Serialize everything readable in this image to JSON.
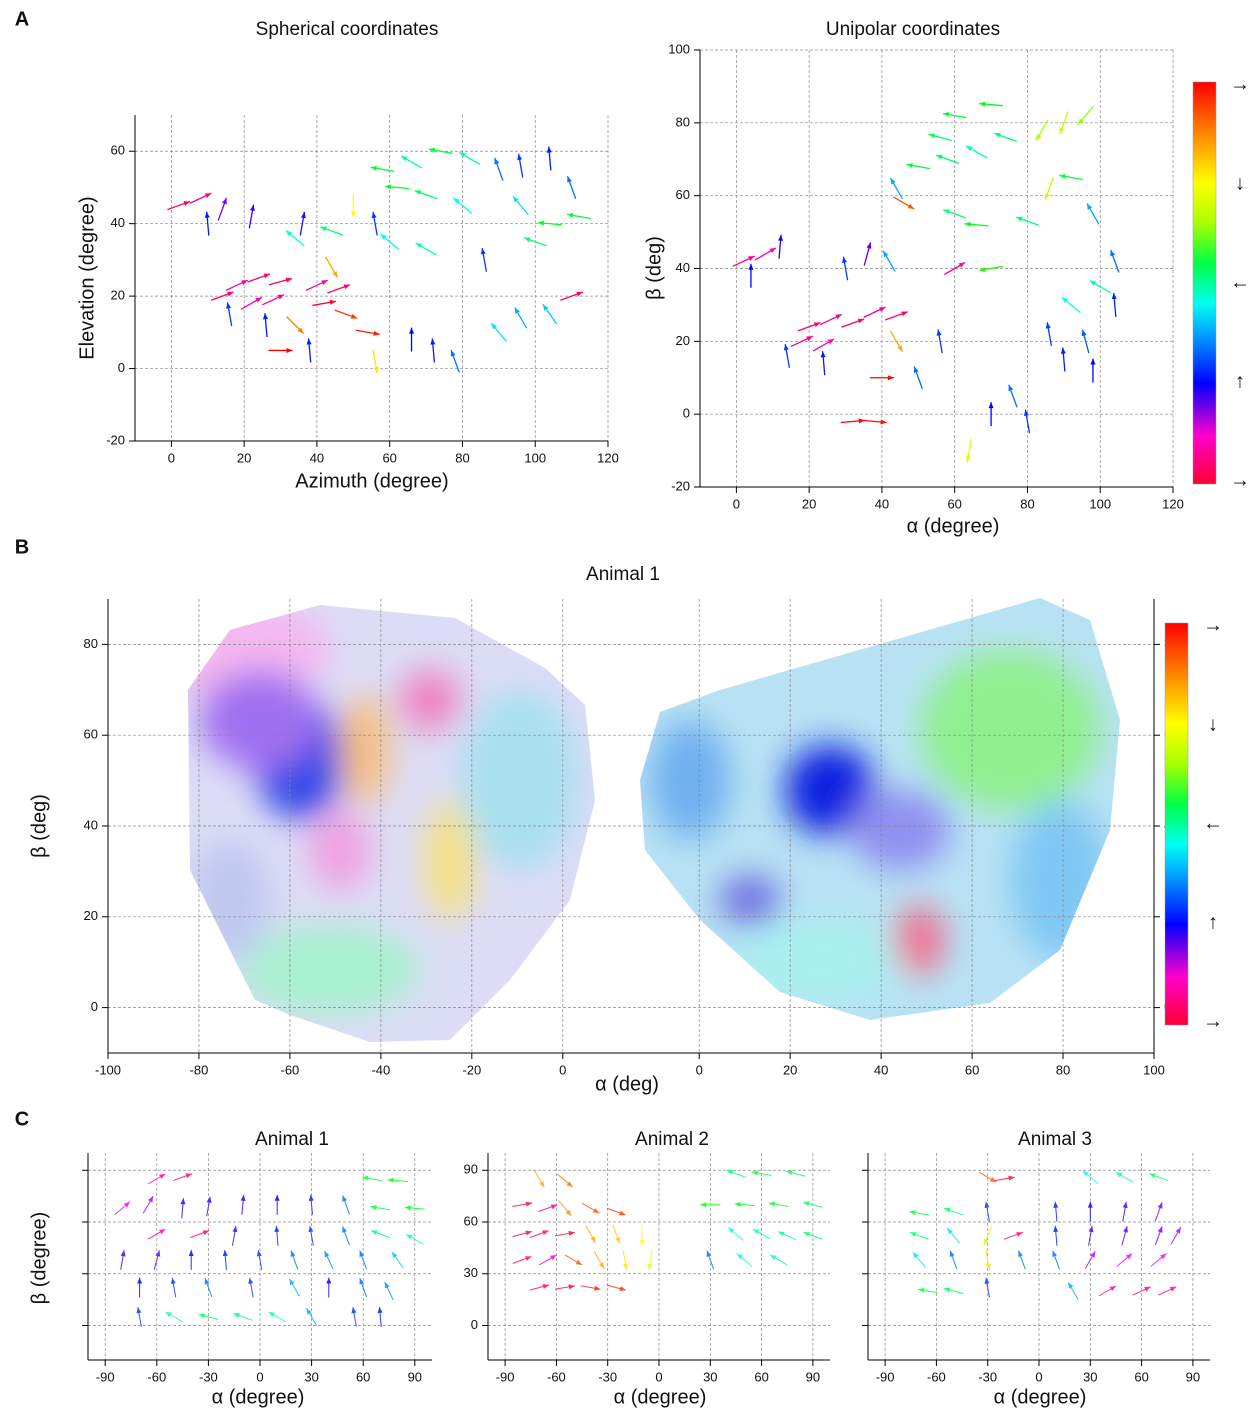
{
  "chart_data": [
    {
      "type": "quiver",
      "panel_label": "A",
      "title": "Spherical coordinates",
      "xlabel": "Azimuth (degree)",
      "ylabel": "Elevation (degree)",
      "xlim": [
        -10,
        120
      ],
      "xticks": [
        0,
        20,
        40,
        60,
        80,
        100,
        120
      ],
      "ylim": [
        -20,
        70
      ],
      "yticks": [
        -20,
        0,
        20,
        40,
        60
      ],
      "grid": true,
      "arrows": {
        "x": [
          2,
          8,
          14,
          10,
          22,
          18,
          24,
          30,
          22,
          28,
          14,
          40,
          46,
          42,
          16,
          26,
          36,
          44,
          34,
          58,
          66,
          74,
          82,
          90,
          96,
          104,
          110,
          62,
          70,
          80,
          96,
          104,
          112,
          100,
          60,
          70,
          86,
          96,
          104,
          110,
          72,
          78,
          66,
          90,
          54,
          56,
          38,
          44,
          50,
          56,
          48,
          30,
          34
        ],
        "y": [
          45,
          47,
          44,
          40,
          42,
          23,
          25,
          24,
          18,
          19,
          20,
          23,
          22,
          18,
          15,
          12,
          40,
          38,
          36,
          55,
          57,
          60,
          58,
          55,
          56,
          58,
          50,
          50,
          48,
          45,
          45,
          40,
          42,
          35,
          35,
          33,
          30,
          14,
          15,
          20,
          5,
          2,
          8,
          10,
          10,
          2,
          5,
          28,
          45,
          40,
          15,
          5,
          12
        ],
        "angle": [
          20,
          25,
          70,
          95,
          80,
          25,
          20,
          15,
          30,
          25,
          20,
          25,
          20,
          10,
          100,
          95,
          80,
          160,
          140,
          170,
          150,
          170,
          150,
          110,
          100,
          95,
          110,
          175,
          160,
          140,
          130,
          175,
          170,
          160,
          140,
          150,
          100,
          120,
          125,
          20,
          95,
          110,
          90,
          130,
          350,
          280,
          95,
          300,
          270,
          100,
          340,
          0,
          315
        ]
      }
    },
    {
      "type": "quiver",
      "title": "Unipolar coordinates",
      "xlabel": "α (degree)",
      "ylabel": "β (deg)",
      "xlim": [
        -10,
        120
      ],
      "xticks": [
        0,
        20,
        40,
        60,
        80,
        100,
        120
      ],
      "ylim": [
        -20,
        100
      ],
      "yticks": [
        -20,
        0,
        20,
        40,
        60,
        80,
        100
      ],
      "grid": true,
      "colorbar": [
        "→",
        "↓",
        "←",
        "↑",
        "→"
      ],
      "arrows": {
        "x": [
          2,
          8,
          12,
          4,
          20,
          26,
          32,
          18,
          24,
          38,
          44,
          14,
          24,
          36,
          30,
          42,
          44,
          50,
          58,
          66,
          74,
          84,
          90,
          96,
          60,
          70,
          56,
          46,
          86,
          92,
          98,
          104,
          100,
          92,
          104,
          86,
          96,
          90,
          60,
          66,
          70,
          60,
          80,
          76,
          70,
          80,
          64,
          50,
          56,
          40,
          38,
          44,
          32,
          98
        ],
        "y": [
          42,
          44,
          46,
          38,
          24,
          26,
          25,
          20,
          19,
          28,
          27,
          16,
          14,
          44,
          40,
          42,
          62,
          68,
          70,
          72,
          76,
          78,
          80,
          82,
          82,
          85,
          76,
          58,
          62,
          65,
          55,
          42,
          35,
          30,
          30,
          22,
          20,
          15,
          55,
          52,
          40,
          40,
          53,
          5,
          0,
          -2,
          -10,
          10,
          20,
          10,
          -2,
          20,
          -2,
          12
        ],
        "angle": [
          25,
          30,
          85,
          90,
          20,
          25,
          20,
          25,
          30,
          25,
          20,
          100,
          95,
          75,
          100,
          120,
          120,
          170,
          160,
          150,
          160,
          240,
          250,
          230,
          170,
          175,
          165,
          330,
          250,
          170,
          120,
          110,
          150,
          140,
          95,
          100,
          105,
          95,
          160,
          175,
          190,
          30,
          160,
          110,
          90,
          100,
          260,
          110,
          100,
          0,
          355,
          300,
          5,
          90
        ]
      }
    },
    {
      "type": "heatmap",
      "panel_label": "B",
      "title": "Animal 1",
      "xlabel": "α (deg)",
      "ylabel": "β (deg)",
      "x_segments": [
        {
          "xlim": [
            -100,
            15
          ],
          "xticks": [
            -100,
            -80,
            -60,
            -40,
            -20,
            0
          ]
        },
        {
          "xlim": [
            -15,
            100
          ],
          "xticks": [
            0,
            20,
            40,
            60,
            80,
            100
          ]
        }
      ],
      "ylim": [
        -10,
        90
      ],
      "yticks": [
        0,
        20,
        40,
        60,
        80
      ],
      "y2lim": [
        -10,
        90
      ],
      "y2ticks": [
        0,
        20,
        40,
        60,
        80
      ],
      "grid": true,
      "colorbar": [
        "→",
        "↓",
        "←",
        "↑",
        "→"
      ]
    },
    {
      "type": "quiver",
      "panel_label": "C",
      "title": "Animal 1",
      "xlabel": "α (degree)",
      "ylabel": "β (degree)",
      "xlim": [
        -100,
        100
      ],
      "xticks": [
        -90,
        -60,
        -30,
        0,
        30,
        60,
        90
      ],
      "ylim": [
        -20,
        100
      ],
      "yticks": [
        0,
        30,
        60,
        90
      ],
      "show_ytick_labels": false,
      "grid": true,
      "arrows": {
        "x": [
          -60,
          -45,
          65,
          80,
          -80,
          -65,
          -45,
          -30,
          -10,
          10,
          30,
          50,
          70,
          90,
          -60,
          -35,
          -15,
          10,
          30,
          50,
          70,
          90,
          -80,
          -60,
          -40,
          -20,
          0,
          20,
          40,
          60,
          80,
          -70,
          -50,
          -30,
          -5,
          20,
          40,
          60,
          75,
          -70,
          -50,
          -30,
          -10,
          10,
          30,
          55,
          70
        ],
        "y": [
          85,
          86,
          85,
          84,
          68,
          70,
          68,
          69,
          70,
          70,
          70,
          70,
          68,
          68,
          53,
          53,
          52,
          52,
          52,
          52,
          53,
          50,
          38,
          38,
          38,
          38,
          38,
          38,
          38,
          38,
          38,
          22,
          22,
          22,
          22,
          22,
          22,
          22,
          20,
          5,
          5,
          5,
          5,
          5,
          5,
          5,
          5
        ],
        "angle": [
          30,
          20,
          170,
          175,
          40,
          60,
          85,
          80,
          85,
          90,
          95,
          110,
          170,
          175,
          30,
          20,
          80,
          95,
          100,
          110,
          160,
          150,
          80,
          75,
          90,
          95,
          100,
          110,
          115,
          110,
          125,
          90,
          100,
          110,
          100,
          120,
          90,
          110,
          115,
          100,
          150,
          165,
          160,
          150,
          120,
          100,
          95
        ]
      }
    },
    {
      "type": "quiver",
      "title": "Animal 2",
      "xlabel": "α (degree)",
      "xlim": [
        -100,
        100
      ],
      "xticks": [
        -90,
        -60,
        -30,
        0,
        30,
        60,
        90
      ],
      "ylim": [
        -20,
        100
      ],
      "yticks": [
        0,
        30,
        60,
        90
      ],
      "show_ytick_labels": true,
      "grid": true,
      "arrows": {
        "x": [
          -70,
          -55,
          -80,
          -65,
          -55,
          -40,
          -25,
          -80,
          -70,
          -55,
          -40,
          -25,
          -10,
          -80,
          -65,
          -50,
          -35,
          -20,
          -5,
          -70,
          -55,
          -40,
          -25,
          45,
          60,
          80,
          30,
          50,
          70,
          90,
          45,
          60,
          75,
          90,
          30,
          50,
          70
        ],
        "y": [
          85,
          84,
          70,
          68,
          68,
          68,
          66,
          53,
          53,
          53,
          53,
          53,
          52,
          38,
          38,
          38,
          38,
          38,
          38,
          22,
          22,
          22,
          22,
          88,
          88,
          88,
          70,
          70,
          70,
          70,
          53,
          53,
          52,
          52,
          38,
          38,
          38
        ],
        "angle": [
          300,
          320,
          10,
          20,
          310,
          330,
          340,
          15,
          20,
          10,
          300,
          290,
          270,
          20,
          30,
          330,
          300,
          280,
          260,
          15,
          10,
          350,
          345,
          160,
          170,
          165,
          180,
          175,
          170,
          165,
          140,
          150,
          155,
          160,
          110,
          140,
          150
        ]
      }
    },
    {
      "type": "quiver",
      "title": "Animal 3",
      "xlabel": "α (degree)",
      "xlim": [
        -100,
        100
      ],
      "xticks": [
        -90,
        -60,
        -30,
        0,
        30,
        60,
        90
      ],
      "ylim": [
        -20,
        100
      ],
      "yticks": [
        0,
        30,
        60,
        90
      ],
      "show_ytick_labels": false,
      "grid": true,
      "arrows": {
        "x": [
          -30,
          -20,
          30,
          50,
          70,
          -70,
          -50,
          -30,
          10,
          30,
          50,
          70,
          -70,
          -50,
          -30,
          -15,
          10,
          30,
          50,
          70,
          80,
          -70,
          -50,
          -30,
          -10,
          10,
          30,
          50,
          70,
          -65,
          -50,
          20,
          40,
          60,
          75,
          -30
        ],
        "y": [
          86,
          85,
          86,
          86,
          86,
          65,
          66,
          66,
          66,
          66,
          66,
          66,
          52,
          52,
          52,
          52,
          52,
          52,
          52,
          52,
          52,
          38,
          38,
          38,
          38,
          38,
          38,
          38,
          38,
          20,
          20,
          20,
          20,
          20,
          20,
          22
        ],
        "angle": [
          330,
          10,
          140,
          150,
          160,
          170,
          160,
          100,
          95,
          90,
          80,
          70,
          160,
          130,
          250,
          20,
          95,
          80,
          75,
          70,
          60,
          130,
          110,
          280,
          110,
          110,
          60,
          40,
          40,
          170,
          165,
          120,
          30,
          25,
          25,
          100
        ]
      }
    }
  ]
}
